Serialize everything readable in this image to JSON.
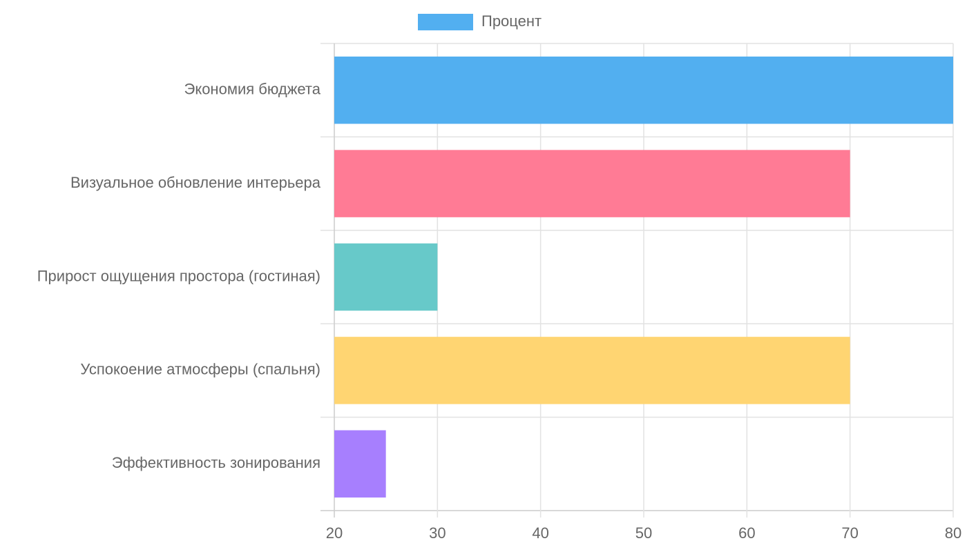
{
  "chart_data": {
    "type": "hbar",
    "categories": [
      "Экономия бюджета",
      "Визуальное обновление интерьера",
      "Прирост ощущения простора (гостиная)",
      "Успокоение атмосферы (спальня)",
      "Эффективность зонирования"
    ],
    "series": [
      {
        "name": "Процент",
        "colors": [
          "#52aff0",
          "#ff7b95",
          "#67c9c9",
          "#ffd572",
          "#a77ffe"
        ],
        "values": [
          80,
          70,
          30,
          70,
          25
        ]
      }
    ],
    "xlim": [
      20,
      80
    ],
    "xticks": [
      20,
      30,
      40,
      50,
      60,
      70,
      80
    ],
    "grid": true,
    "legend": "top"
  }
}
